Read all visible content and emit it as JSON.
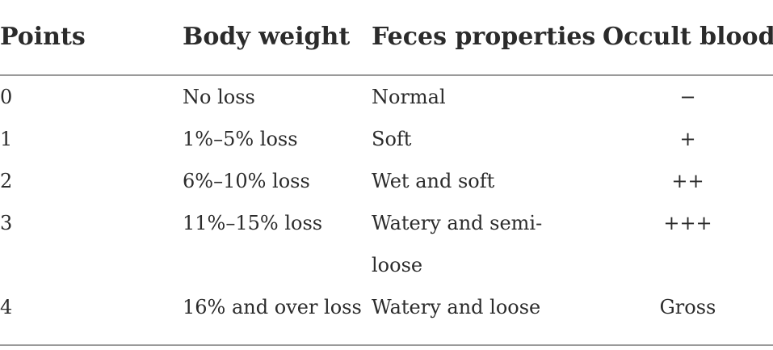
{
  "headers": {
    "points": "Points",
    "body_weight": "Body weight",
    "feces_properties": "Feces properties",
    "occult_blood": "Occult blood"
  },
  "rows": [
    {
      "points": "0",
      "body_weight": "No loss",
      "feces_properties": "Normal",
      "occult_blood": "−"
    },
    {
      "points": "1",
      "body_weight": "1%–5% loss",
      "feces_properties": "Soft",
      "occult_blood": "+"
    },
    {
      "points": "2",
      "body_weight": "6%–10% loss",
      "feces_properties": "Wet and soft",
      "occult_blood": "++"
    },
    {
      "points": "3",
      "body_weight": "11%–15% loss",
      "feces_properties": "Watery and semi-loose",
      "occult_blood": "+++"
    },
    {
      "points": "4",
      "body_weight": "16% and over loss",
      "feces_properties": "Watery and loose",
      "occult_blood": "Gross"
    }
  ]
}
